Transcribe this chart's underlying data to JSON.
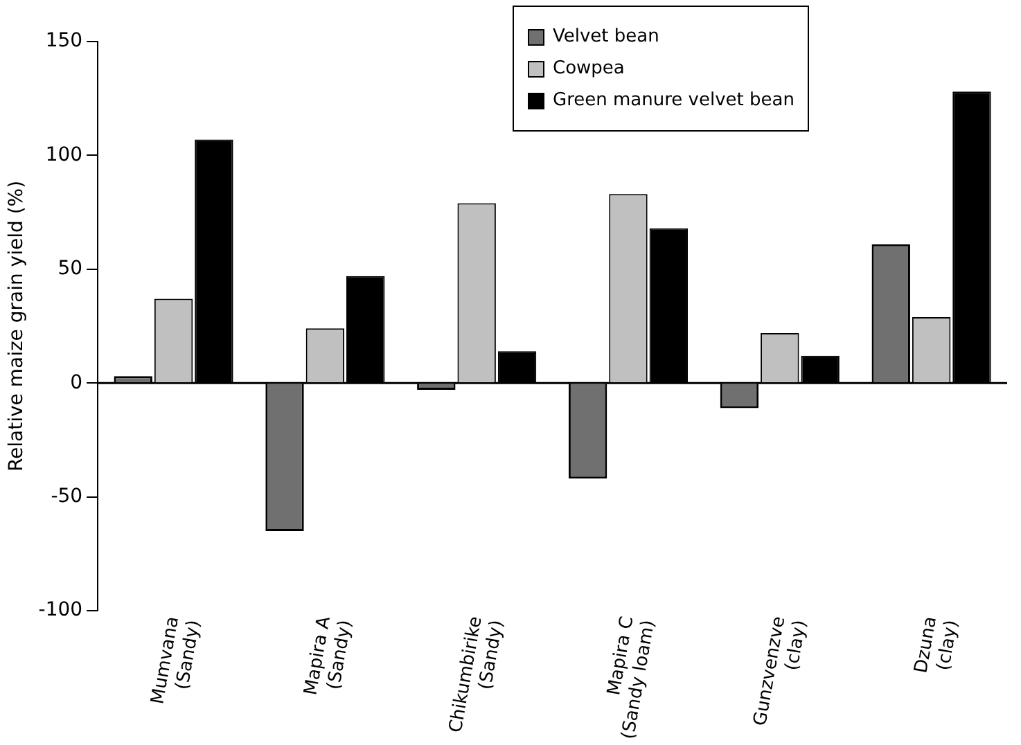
{
  "chart_data": {
    "type": "bar",
    "ylabel": "Relative maize grain yield (%)",
    "categories": [
      "Mumvana\n(Sandy)",
      "Mapira A\n(Sandy)",
      "Chikumbirike\n(Sandy)",
      "Mapira C\n(Sandy loam)",
      "Gunzvenzve\n(clay)",
      "Dzuna\n(clay)"
    ],
    "series": [
      {
        "name": "Velvet bean",
        "color": "#707070",
        "values": [
          3,
          -65,
          -3,
          -42,
          -11,
          61
        ]
      },
      {
        "name": "Cowpea",
        "color": "#c0c0c0",
        "values": [
          37,
          24,
          79,
          83,
          22,
          29
        ]
      },
      {
        "name": "Green manure velvet bean",
        "color": "#000000",
        "values": [
          107,
          47,
          14,
          68,
          12,
          128
        ]
      }
    ],
    "ylim": [
      -100,
      150
    ],
    "yticks": [
      -100,
      -50,
      0,
      50,
      100,
      150
    ],
    "grid": false,
    "ref_lines": [
      {
        "axis": "y",
        "value": 0,
        "color": "#000000"
      }
    ],
    "legend": "top"
  }
}
